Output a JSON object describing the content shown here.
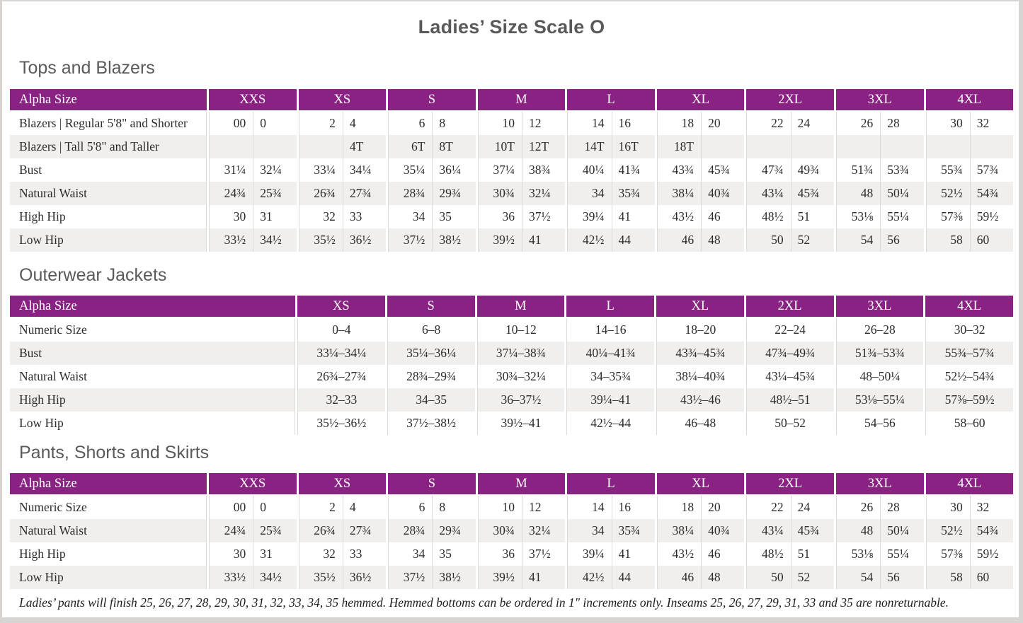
{
  "page": {
    "title": "Ladies’ Size Scale O",
    "footnote": "Ladies’ pants will finish 25, 26, 27, 28, 29, 30, 31, 32, 33, 34, 35 hemmed. Hemmed bottoms can be ordered in 1″ increments only. Inseams 25, 26, 27, 29, 31, 33 and 35 are nonreturnable."
  },
  "colors": {
    "accent": "#8a2284",
    "stripe": "#f1efed",
    "divider": "#dcdad7",
    "frame": "#d7d4d2",
    "heading_text": "#595a5c",
    "body_text": "#2e2c2a"
  },
  "tables": [
    {
      "id": "tops-and-blazers",
      "section_title": "Tops and Blazers",
      "header_label": "Alpha Size",
      "columns": [
        "XXS",
        "XS",
        "S",
        "M",
        "L",
        "XL",
        "2XL",
        "3XL",
        "4XL"
      ],
      "paired": true,
      "rows": [
        {
          "label": "Blazers | Regular 5'8\" and Shorter",
          "values": [
            [
              "00",
              "0"
            ],
            [
              "2",
              "4"
            ],
            [
              "6",
              "8"
            ],
            [
              "10",
              "12"
            ],
            [
              "14",
              "16"
            ],
            [
              "18",
              "20"
            ],
            [
              "22",
              "24"
            ],
            [
              "26",
              "28"
            ],
            [
              "30",
              "32"
            ]
          ]
        },
        {
          "label": "Blazers | Tall 5'8\" and Taller",
          "values": [
            [
              "",
              ""
            ],
            [
              "",
              "4T"
            ],
            [
              "6T",
              "8T"
            ],
            [
              "10T",
              "12T"
            ],
            [
              "14T",
              "16T"
            ],
            [
              "18T",
              ""
            ],
            [
              "",
              ""
            ],
            [
              "",
              ""
            ],
            [
              "",
              ""
            ]
          ]
        },
        {
          "label": "Bust",
          "values": [
            [
              "31¼",
              "32¼"
            ],
            [
              "33¼",
              "34¼"
            ],
            [
              "35¼",
              "36¼"
            ],
            [
              "37¼",
              "38¾"
            ],
            [
              "40¼",
              "41¾"
            ],
            [
              "43¾",
              "45¾"
            ],
            [
              "47¾",
              "49¾"
            ],
            [
              "51¾",
              "53¾"
            ],
            [
              "55¾",
              "57¾"
            ]
          ]
        },
        {
          "label": "Natural Waist",
          "values": [
            [
              "24¾",
              "25¾"
            ],
            [
              "26¾",
              "27¾"
            ],
            [
              "28¾",
              "29¾"
            ],
            [
              "30¾",
              "32¼"
            ],
            [
              "34",
              "35¾"
            ],
            [
              "38¼",
              "40¾"
            ],
            [
              "43¼",
              "45¾"
            ],
            [
              "48",
              "50¼"
            ],
            [
              "52½",
              "54¾"
            ]
          ]
        },
        {
          "label": "High Hip",
          "values": [
            [
              "30",
              "31"
            ],
            [
              "32",
              "33"
            ],
            [
              "34",
              "35"
            ],
            [
              "36",
              "37½"
            ],
            [
              "39¼",
              "41"
            ],
            [
              "43½",
              "46"
            ],
            [
              "48½",
              "51"
            ],
            [
              "53⅛",
              "55¼"
            ],
            [
              "57⅜",
              "59½"
            ]
          ]
        },
        {
          "label": "Low Hip",
          "values": [
            [
              "33½",
              "34½"
            ],
            [
              "35½",
              "36½"
            ],
            [
              "37½",
              "38½"
            ],
            [
              "39½",
              "41"
            ],
            [
              "42½",
              "44"
            ],
            [
              "46",
              "48"
            ],
            [
              "50",
              "52"
            ],
            [
              "54",
              "56"
            ],
            [
              "58",
              "60"
            ]
          ]
        }
      ]
    },
    {
      "id": "outerwear-jackets",
      "section_title": "Outerwear Jackets",
      "header_label": "Alpha Size",
      "columns": [
        "XS",
        "S",
        "M",
        "L",
        "XL",
        "2XL",
        "3XL",
        "4XL"
      ],
      "paired": false,
      "rows": [
        {
          "label": "Numeric Size",
          "values": [
            "0–4",
            "6–8",
            "10–12",
            "14–16",
            "18–20",
            "22–24",
            "26–28",
            "30–32"
          ]
        },
        {
          "label": "Bust",
          "values": [
            "33¼–34¼",
            "35¼–36¼",
            "37¼–38¾",
            "40¼–41¾",
            "43¾–45¾",
            "47¾–49¾",
            "51¾–53¾",
            "55¾–57¾"
          ]
        },
        {
          "label": "Natural Waist",
          "values": [
            "26¾–27¾",
            "28¾–29¾",
            "30¾–32¼",
            "34–35¾",
            "38¼–40¾",
            "43¼–45¾",
            "48–50¼",
            "52½–54¾"
          ]
        },
        {
          "label": "High Hip",
          "values": [
            "32–33",
            "34–35",
            "36–37½",
            "39¼–41",
            "43½–46",
            "48½–51",
            "53⅛–55¼",
            "57⅜–59½"
          ]
        },
        {
          "label": "Low Hip",
          "values": [
            "35½–36½",
            "37½–38½",
            "39½–41",
            "42½–44",
            "46–48",
            "50–52",
            "54–56",
            "58–60"
          ]
        }
      ]
    },
    {
      "id": "pants-shorts-and-skirts",
      "section_title": "Pants, Shorts and Skirts",
      "header_label": "Alpha Size",
      "columns": [
        "XXS",
        "XS",
        "S",
        "M",
        "L",
        "XL",
        "2XL",
        "3XL",
        "4XL"
      ],
      "paired": true,
      "rows": [
        {
          "label": "Numeric Size",
          "values": [
            [
              "00",
              "0"
            ],
            [
              "2",
              "4"
            ],
            [
              "6",
              "8"
            ],
            [
              "10",
              "12"
            ],
            [
              "14",
              "16"
            ],
            [
              "18",
              "20"
            ],
            [
              "22",
              "24"
            ],
            [
              "26",
              "28"
            ],
            [
              "30",
              "32"
            ]
          ]
        },
        {
          "label": "Natural Waist",
          "values": [
            [
              "24¾",
              "25¾"
            ],
            [
              "26¾",
              "27¾"
            ],
            [
              "28¾",
              "29¾"
            ],
            [
              "30¾",
              "32¼"
            ],
            [
              "34",
              "35¾"
            ],
            [
              "38¼",
              "40¾"
            ],
            [
              "43¼",
              "45¾"
            ],
            [
              "48",
              "50¼"
            ],
            [
              "52½",
              "54¾"
            ]
          ]
        },
        {
          "label": "High Hip",
          "values": [
            [
              "30",
              "31"
            ],
            [
              "32",
              "33"
            ],
            [
              "34",
              "35"
            ],
            [
              "36",
              "37½"
            ],
            [
              "39¼",
              "41"
            ],
            [
              "43½",
              "46"
            ],
            [
              "48½",
              "51"
            ],
            [
              "53⅛",
              "55¼"
            ],
            [
              "57⅜",
              "59½"
            ]
          ]
        },
        {
          "label": "Low Hip",
          "values": [
            [
              "33½",
              "34½"
            ],
            [
              "35½",
              "36½"
            ],
            [
              "37½",
              "38½"
            ],
            [
              "39½",
              "41"
            ],
            [
              "42½",
              "44"
            ],
            [
              "46",
              "48"
            ],
            [
              "50",
              "52"
            ],
            [
              "54",
              "56"
            ],
            [
              "58",
              "60"
            ]
          ]
        }
      ]
    }
  ]
}
